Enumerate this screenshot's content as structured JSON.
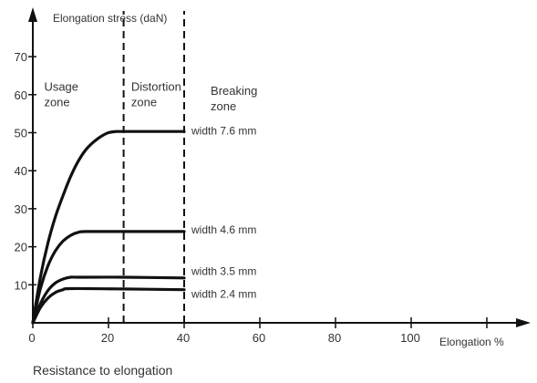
{
  "caption": "Resistance to elongation",
  "chart_data": {
    "type": "line",
    "title": "",
    "ylabel": "Elongation stress (daN)",
    "xlabel": "Elongation %",
    "xlim": [
      0,
      120
    ],
    "ylim": [
      0,
      75
    ],
    "x_ticks": [
      0,
      20,
      40,
      60,
      80,
      100
    ],
    "y_ticks": [
      10,
      20,
      30,
      40,
      50,
      60,
      70
    ],
    "grid": false,
    "zone_boundaries": [
      24,
      40
    ],
    "zones": [
      {
        "label_line1": "Usage",
        "label_line2": "zone",
        "x": 3,
        "y": 61
      },
      {
        "label_line1": "Distortion",
        "label_line2": "zone",
        "x": 26,
        "y": 61
      },
      {
        "label_line1": "Breaking",
        "label_line2": "zone",
        "x": 47,
        "y": 60
      }
    ],
    "series": [
      {
        "name": "width 7.6 mm",
        "label_y": 50.5,
        "x": [
          0,
          2,
          4,
          6,
          8,
          10,
          12,
          14,
          16,
          18,
          20,
          22,
          24,
          40
        ],
        "values": [
          0,
          12,
          21,
          28,
          33.5,
          38.5,
          42.5,
          45.5,
          47.5,
          49,
          50,
          50.3,
          50.3,
          50.3
        ]
      },
      {
        "name": "width 4.6 mm",
        "label_y": 24.5,
        "x": [
          0,
          2,
          4,
          6,
          8,
          10,
          12,
          14,
          24,
          40
        ],
        "values": [
          0,
          9,
          15,
          19,
          21.5,
          23,
          23.8,
          24,
          24,
          24
        ]
      },
      {
        "name": "width 3.5 mm",
        "label_y": 13.5,
        "x": [
          0,
          2,
          4,
          6,
          8,
          10,
          12,
          24,
          40
        ],
        "values": [
          0,
          5,
          8.5,
          10.5,
          11.5,
          12,
          12,
          12,
          11.8
        ]
      },
      {
        "name": "width 2.4 mm",
        "label_y": 7.5,
        "x": [
          0,
          2,
          4,
          6,
          8,
          10,
          24,
          40
        ],
        "values": [
          0,
          4,
          6.5,
          8,
          8.7,
          9,
          8.9,
          8.7
        ]
      }
    ]
  }
}
